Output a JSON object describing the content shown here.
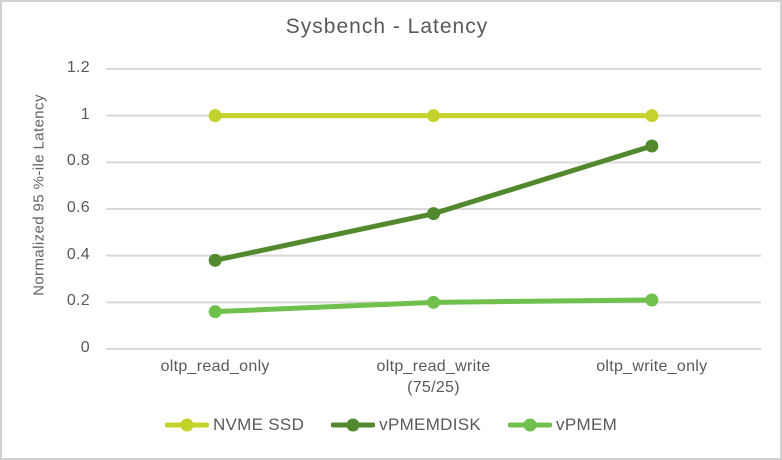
{
  "chart_data": {
    "type": "line",
    "title": "Sysbench - Latency",
    "xlabel": "",
    "ylabel": "Normalized 95 %-ile Latency",
    "categories": [
      "oltp_read_only",
      "oltp_read_write\n(75/25)",
      "oltp_write_only"
    ],
    "y_ticks": [
      "0",
      "0.2",
      "0.4",
      "0.6",
      "0.8",
      "1",
      "1.2"
    ],
    "y_tick_values": [
      0,
      0.2,
      0.4,
      0.6,
      0.8,
      1.0,
      1.2
    ],
    "ylim": [
      0,
      1.2
    ],
    "grid": true,
    "legend_position": "bottom",
    "series": [
      {
        "name": "NVME SSD",
        "color": "#c3d32b",
        "values": [
          1.0,
          1.0,
          1.0
        ]
      },
      {
        "name": "vPMEMDISK",
        "color": "#52892e",
        "values": [
          0.38,
          0.58,
          0.87
        ]
      },
      {
        "name": "vPMEM",
        "color": "#6fc04d",
        "values": [
          0.16,
          0.2,
          0.21
        ]
      }
    ]
  },
  "colors": {
    "gridline": "#d9d9d9",
    "text": "#595959",
    "frame_border": "#d2d2d2",
    "background": "#ffffff"
  }
}
